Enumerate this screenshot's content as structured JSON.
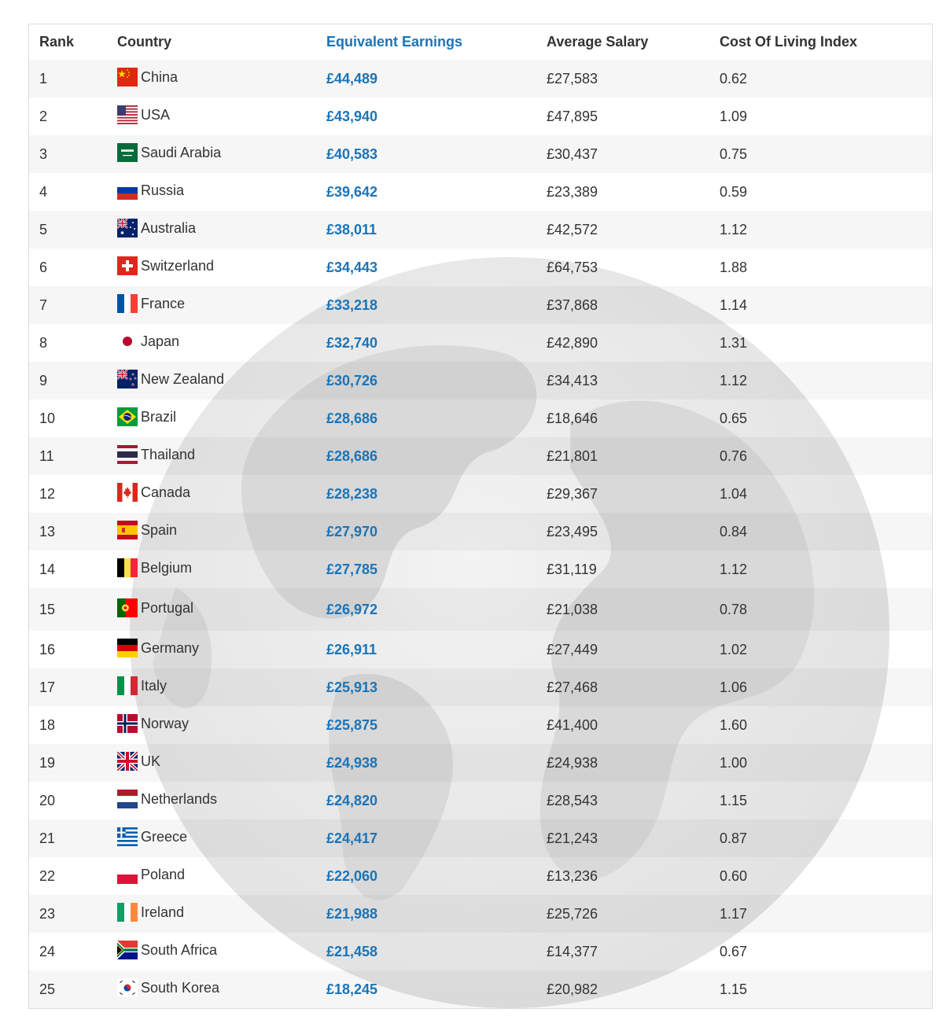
{
  "table": {
    "headers": {
      "rank": "Rank",
      "country": "Country",
      "earnings": "Equivalent Earnings",
      "salary": "Average Salary",
      "col_index": "Cost Of Living Index"
    },
    "rows": [
      {
        "rank": "1",
        "country": "China",
        "flag": "china-flag",
        "earnings": "£44,489",
        "salary": "£27,583",
        "col_index": "0.62"
      },
      {
        "rank": "2",
        "country": "USA",
        "flag": "usa-flag",
        "earnings": "£43,940",
        "salary": "£47,895",
        "col_index": "1.09"
      },
      {
        "rank": "3",
        "country": "Saudi Arabia",
        "flag": "saudi-arabia-flag",
        "earnings": "£40,583",
        "salary": "£30,437",
        "col_index": "0.75"
      },
      {
        "rank": "4",
        "country": "Russia",
        "flag": "russia-flag",
        "earnings": "£39,642",
        "salary": "£23,389",
        "col_index": "0.59"
      },
      {
        "rank": "5",
        "country": "Australia",
        "flag": "australia-flag",
        "earnings": "£38,011",
        "salary": "£42,572",
        "col_index": "1.12"
      },
      {
        "rank": "6",
        "country": "Switzerland",
        "flag": "switzerland-flag",
        "earnings": "£34,443",
        "salary": "£64,753",
        "col_index": "1.88"
      },
      {
        "rank": "7",
        "country": "France",
        "flag": "france-flag",
        "earnings": "£33,218",
        "salary": "£37,868",
        "col_index": "1.14"
      },
      {
        "rank": "8",
        "country": "Japan",
        "flag": "japan-flag",
        "earnings": "£32,740",
        "salary": "£42,890",
        "col_index": "1.31"
      },
      {
        "rank": "9",
        "country": "New Zealand",
        "flag": "new-zealand-flag",
        "earnings": "£30,726",
        "salary": "£34,413",
        "col_index": "1.12"
      },
      {
        "rank": "10",
        "country": "Brazil",
        "flag": "brazil-flag",
        "earnings": "£28,686",
        "salary": "£18,646",
        "col_index": "0.65"
      },
      {
        "rank": "11",
        "country": "Thailand",
        "flag": "thailand-flag",
        "earnings": "£28,686",
        "salary": "£21,801",
        "col_index": "0.76"
      },
      {
        "rank": "12",
        "country": "Canada",
        "flag": "canada-flag",
        "earnings": "£28,238",
        "salary": "£29,367",
        "col_index": "1.04"
      },
      {
        "rank": "13",
        "country": "Spain",
        "flag": "spain-flag",
        "earnings": "£27,970",
        "salary": "£23,495",
        "col_index": "0.84"
      },
      {
        "rank": "14",
        "country": "Belgium",
        "flag": "belgium-flag",
        "earnings": "£27,785",
        "salary": "£31,119",
        "col_index": "1.12"
      },
      {
        "rank": "15",
        "country": "Portugal",
        "flag": "portugal-flag",
        "earnings": "£26,972",
        "salary": "£21,038",
        "col_index": "0.78"
      },
      {
        "rank": "16",
        "country": "Germany",
        "flag": "germany-flag",
        "earnings": "£26,911",
        "salary": "£27,449",
        "col_index": "1.02"
      },
      {
        "rank": "17",
        "country": "Italy",
        "flag": "italy-flag",
        "earnings": "£25,913",
        "salary": "£27,468",
        "col_index": "1.06"
      },
      {
        "rank": "18",
        "country": "Norway",
        "flag": "norway-flag",
        "earnings": "£25,875",
        "salary": "£41,400",
        "col_index": "1.60"
      },
      {
        "rank": "19",
        "country": "UK",
        "flag": "uk-flag",
        "earnings": "£24,938",
        "salary": "£24,938",
        "col_index": "1.00"
      },
      {
        "rank": "20",
        "country": "Netherlands",
        "flag": "netherlands-flag",
        "earnings": "£24,820",
        "salary": "£28,543",
        "col_index": "1.15"
      },
      {
        "rank": "21",
        "country": "Greece",
        "flag": "greece-flag",
        "earnings": "£24,417",
        "salary": "£21,243",
        "col_index": "0.87"
      },
      {
        "rank": "22",
        "country": "Poland",
        "flag": "poland-flag",
        "earnings": "£22,060",
        "salary": "£13,236",
        "col_index": "0.60"
      },
      {
        "rank": "23",
        "country": "Ireland",
        "flag": "ireland-flag",
        "earnings": "£21,988",
        "salary": "£25,726",
        "col_index": "1.17"
      },
      {
        "rank": "24",
        "country": "South Africa",
        "flag": "south-africa-flag",
        "earnings": "£21,458",
        "salary": "£14,377",
        "col_index": "0.67"
      },
      {
        "rank": "25",
        "country": "South Korea",
        "flag": "south-korea-flag",
        "earnings": "£18,245",
        "salary": "£20,982",
        "col_index": "1.15"
      }
    ]
  },
  "background_icon": "globe-watermark-icon",
  "colors": {
    "accent": "#1a74b8",
    "text": "#333333",
    "border": "#dcdcdc",
    "watermark": "#e6e6e6"
  }
}
